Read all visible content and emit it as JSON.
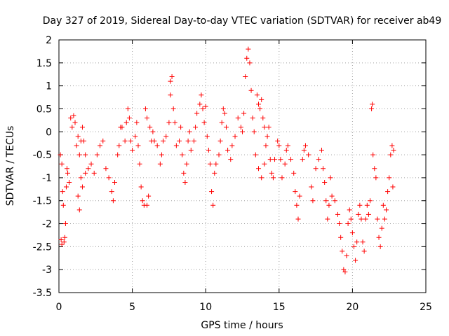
{
  "chart_data": {
    "type": "scatter",
    "title": "Day 327 of 2019, Sidereal Day-to-day VTEC variation (SDTVAR) for receiver ab49",
    "xlabel": "GPS time / hours",
    "ylabel": "SDTVAR / TECUs",
    "xlim": [
      0,
      25
    ],
    "ylim": [
      -3.5,
      2
    ],
    "xticks": [
      "0",
      "5",
      "10",
      "15",
      "20",
      "25"
    ],
    "yticks": [
      "2",
      "1.5",
      "1",
      "0.5",
      "0",
      "-0.5",
      "-1",
      "-1.5",
      "-2",
      "-2.5",
      "-3",
      "-3.5"
    ],
    "xtick_values": [
      0,
      5,
      10,
      15,
      20,
      25
    ],
    "ytick_values": [
      2,
      1.5,
      1,
      0.5,
      0,
      -0.5,
      -1,
      -1.5,
      -2,
      -2.5,
      -3,
      -3.5
    ],
    "grid": true,
    "marker": "+",
    "color": "#ff0000",
    "series": [
      {
        "name": "SDTVAR",
        "points": [
          [
            0.1,
            -0.5
          ],
          [
            0.2,
            -0.7
          ],
          [
            0.25,
            -1.3
          ],
          [
            0.3,
            -1.6
          ],
          [
            0.35,
            -2.4
          ],
          [
            0.4,
            -2.3
          ],
          [
            0.45,
            -2.0
          ],
          [
            0.5,
            -1.2
          ],
          [
            0.55,
            -0.8
          ],
          [
            0.6,
            -0.9
          ],
          [
            0.7,
            -1.1
          ],
          [
            0.8,
            0.3
          ],
          [
            0.9,
            0.1
          ],
          [
            1.0,
            0.35
          ],
          [
            1.1,
            0.2
          ],
          [
            1.2,
            -0.3
          ],
          [
            1.3,
            -0.1
          ],
          [
            1.4,
            -0.5
          ],
          [
            1.5,
            -0.2
          ],
          [
            1.6,
            0.1
          ],
          [
            1.7,
            -0.2
          ],
          [
            1.8,
            -0.5
          ],
          [
            1.5,
            -1.0
          ],
          [
            1.3,
            -1.4
          ],
          [
            1.4,
            -1.7
          ],
          [
            1.6,
            -1.2
          ],
          [
            1.8,
            -0.9
          ],
          [
            2.0,
            -0.8
          ],
          [
            2.2,
            -0.7
          ],
          [
            2.4,
            -0.9
          ],
          [
            2.6,
            -0.5
          ],
          [
            2.8,
            -0.3
          ],
          [
            3.0,
            -0.2
          ],
          [
            3.2,
            -0.8
          ],
          [
            3.4,
            -1.0
          ],
          [
            3.6,
            -1.3
          ],
          [
            3.7,
            -1.5
          ],
          [
            3.8,
            -1.1
          ],
          [
            4.0,
            -0.5
          ],
          [
            4.1,
            -0.3
          ],
          [
            4.2,
            0.1
          ],
          [
            4.3,
            0.1
          ],
          [
            4.5,
            -0.2
          ],
          [
            4.6,
            0.2
          ],
          [
            4.7,
            0.5
          ],
          [
            4.8,
            0.3
          ],
          [
            4.9,
            -0.2
          ],
          [
            5.0,
            -0.4
          ],
          [
            5.2,
            -0.1
          ],
          [
            5.3,
            0.2
          ],
          [
            5.4,
            -0.3
          ],
          [
            5.5,
            -0.7
          ],
          [
            5.6,
            -1.2
          ],
          [
            5.7,
            -1.5
          ],
          [
            5.8,
            -1.6
          ],
          [
            6.0,
            -1.6
          ],
          [
            6.1,
            -1.4
          ],
          [
            5.9,
            0.5
          ],
          [
            6.0,
            0.3
          ],
          [
            6.2,
            0.1
          ],
          [
            6.3,
            -0.2
          ],
          [
            6.4,
            0.0
          ],
          [
            6.5,
            -0.2
          ],
          [
            6.7,
            -0.3
          ],
          [
            6.9,
            -0.7
          ],
          [
            7.0,
            -0.5
          ],
          [
            7.1,
            -0.2
          ],
          [
            7.3,
            -0.1
          ],
          [
            7.5,
            0.2
          ],
          [
            7.6,
            1.1
          ],
          [
            7.7,
            1.2
          ],
          [
            7.6,
            0.8
          ],
          [
            7.8,
            0.5
          ],
          [
            7.9,
            0.2
          ],
          [
            8.0,
            -0.3
          ],
          [
            8.2,
            -0.2
          ],
          [
            8.3,
            0.1
          ],
          [
            8.4,
            -0.5
          ],
          [
            8.5,
            -0.9
          ],
          [
            8.6,
            -1.1
          ],
          [
            8.7,
            -0.7
          ],
          [
            8.8,
            -0.2
          ],
          [
            8.9,
            0.0
          ],
          [
            9.0,
            -0.4
          ],
          [
            9.2,
            -0.2
          ],
          [
            9.3,
            0.1
          ],
          [
            9.4,
            0.4
          ],
          [
            9.6,
            0.6
          ],
          [
            9.7,
            0.8
          ],
          [
            9.8,
            0.5
          ],
          [
            9.9,
            0.2
          ],
          [
            10.0,
            0.55
          ],
          [
            10.1,
            -0.1
          ],
          [
            10.2,
            -0.4
          ],
          [
            10.3,
            -0.7
          ],
          [
            10.4,
            -1.3
          ],
          [
            10.5,
            -1.6
          ],
          [
            10.6,
            -0.9
          ],
          [
            10.7,
            -0.7
          ],
          [
            10.9,
            -0.5
          ],
          [
            11.0,
            -0.2
          ],
          [
            11.1,
            0.2
          ],
          [
            11.2,
            0.5
          ],
          [
            11.3,
            0.4
          ],
          [
            11.4,
            0.1
          ],
          [
            11.5,
            -0.4
          ],
          [
            11.7,
            -0.6
          ],
          [
            11.8,
            -0.3
          ],
          [
            12.0,
            -0.1
          ],
          [
            12.2,
            0.3
          ],
          [
            12.4,
            0.1
          ],
          [
            12.5,
            0.0
          ],
          [
            12.6,
            0.4
          ],
          [
            12.7,
            1.2
          ],
          [
            12.8,
            1.6
          ],
          [
            12.9,
            1.8
          ],
          [
            13.0,
            1.5
          ],
          [
            13.1,
            0.9
          ],
          [
            13.2,
            0.3
          ],
          [
            13.3,
            0.0
          ],
          [
            13.4,
            -0.5
          ],
          [
            13.5,
            0.8
          ],
          [
            13.6,
            0.6
          ],
          [
            13.7,
            0.5
          ],
          [
            13.8,
            0.7
          ],
          [
            13.9,
            0.3
          ],
          [
            14.0,
            0.1
          ],
          [
            13.6,
            -0.8
          ],
          [
            13.8,
            -1.0
          ],
          [
            14.0,
            -0.7
          ],
          [
            14.1,
            -0.3
          ],
          [
            14.2,
            -0.1
          ],
          [
            14.3,
            0.1
          ],
          [
            14.4,
            -0.6
          ],
          [
            14.5,
            -0.9
          ],
          [
            14.6,
            -1.0
          ],
          [
            14.7,
            -0.6
          ],
          [
            14.9,
            -0.2
          ],
          [
            15.0,
            -0.3
          ],
          [
            15.1,
            -0.6
          ],
          [
            15.2,
            -1.0
          ],
          [
            15.4,
            -0.7
          ],
          [
            15.5,
            -0.4
          ],
          [
            15.6,
            -0.3
          ],
          [
            15.8,
            -0.6
          ],
          [
            16.0,
            -0.9
          ],
          [
            16.1,
            -1.3
          ],
          [
            16.2,
            -1.6
          ],
          [
            16.3,
            -1.9
          ],
          [
            16.4,
            -1.4
          ],
          [
            16.6,
            -0.6
          ],
          [
            16.7,
            -0.4
          ],
          [
            16.8,
            -0.3
          ],
          [
            17.0,
            -0.5
          ],
          [
            17.2,
            -1.2
          ],
          [
            17.3,
            -1.5
          ],
          [
            17.5,
            -0.8
          ],
          [
            17.7,
            -0.6
          ],
          [
            17.9,
            -0.4
          ],
          [
            18.0,
            -0.8
          ],
          [
            18.1,
            -1.1
          ],
          [
            18.2,
            -1.5
          ],
          [
            18.3,
            -1.9
          ],
          [
            18.4,
            -1.6
          ],
          [
            18.5,
            -1.0
          ],
          [
            18.6,
            -1.4
          ],
          [
            18.8,
            -1.5
          ],
          [
            19.0,
            -1.8
          ],
          [
            19.1,
            -2.0
          ],
          [
            19.2,
            -2.3
          ],
          [
            19.3,
            -2.6
          ],
          [
            19.4,
            -3.0
          ],
          [
            19.5,
            -3.05
          ],
          [
            19.6,
            -2.7
          ],
          [
            19.7,
            -2.0
          ],
          [
            19.8,
            -1.7
          ],
          [
            19.9,
            -1.9
          ],
          [
            20.0,
            -2.2
          ],
          [
            20.1,
            -2.5
          ],
          [
            20.2,
            -2.8
          ],
          [
            20.3,
            -2.4
          ],
          [
            20.4,
            -1.8
          ],
          [
            20.5,
            -1.6
          ],
          [
            20.6,
            -1.9
          ],
          [
            20.7,
            -2.4
          ],
          [
            20.8,
            -2.6
          ],
          [
            20.9,
            -1.9
          ],
          [
            21.0,
            -1.6
          ],
          [
            21.1,
            -1.8
          ],
          [
            21.2,
            -1.5
          ],
          [
            21.3,
            0.5
          ],
          [
            21.35,
            0.6
          ],
          [
            21.4,
            -0.5
          ],
          [
            21.5,
            -0.8
          ],
          [
            21.6,
            -1.0
          ],
          [
            21.7,
            -1.9
          ],
          [
            21.8,
            -2.3
          ],
          [
            21.9,
            -2.5
          ],
          [
            22.0,
            -2.1
          ],
          [
            22.1,
            -1.6
          ],
          [
            22.2,
            -1.9
          ],
          [
            22.3,
            -1.7
          ],
          [
            22.4,
            -1.3
          ],
          [
            22.5,
            -1.0
          ],
          [
            22.6,
            -0.5
          ],
          [
            22.7,
            -0.3
          ],
          [
            22.75,
            -1.2
          ],
          [
            22.8,
            -0.4
          ],
          [
            0.15,
            -2.35
          ],
          [
            0.2,
            -2.45
          ]
        ]
      }
    ]
  }
}
